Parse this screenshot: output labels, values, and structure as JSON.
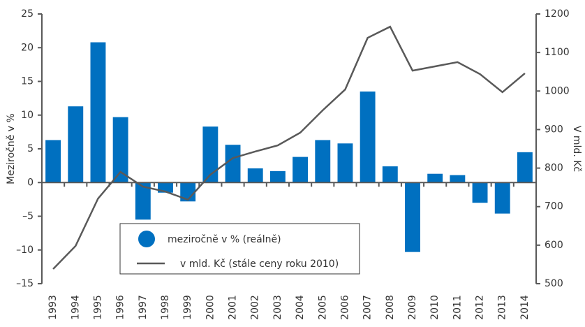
{
  "chart_data": {
    "type": "bar-line",
    "categories": [
      "1993",
      "1994",
      "1995",
      "1996",
      "1997",
      "1998",
      "1999",
      "2000",
      "2001",
      "2002",
      "2003",
      "2004",
      "2005",
      "2006",
      "2007",
      "2008",
      "2009",
      "2010",
      "2011",
      "2012",
      "2013",
      "2014"
    ],
    "series": [
      {
        "name": "meziročně v % (reálně)",
        "type": "bar",
        "color": "#0070c0",
        "axis": "y",
        "values": [
          6.3,
          11.3,
          20.8,
          9.7,
          -5.5,
          -1.5,
          -2.8,
          8.3,
          5.6,
          2.1,
          1.7,
          3.8,
          6.3,
          5.8,
          13.5,
          2.4,
          -10.3,
          1.3,
          1.1,
          -3.0,
          -4.6,
          4.5
        ]
      },
      {
        "name": "v mld. Kč (stále ceny roku 2010)",
        "type": "line",
        "color": "#595959",
        "axis": "y2",
        "values": [
          538,
          598,
          721,
          790,
          752,
          739,
          718,
          783,
          826,
          843,
          859,
          892,
          950,
          1004,
          1138,
          1167,
          1053,
          1064,
          1075,
          1044,
          997,
          1046
        ]
      }
    ],
    "ylabel": "Meziročně v %",
    "y2label": "V mld. Kč",
    "ylim": [
      -15,
      25
    ],
    "yticks": [
      {
        "value": -15,
        "label": "–15"
      },
      {
        "value": -10,
        "label": "–10"
      },
      {
        "value": -5,
        "label": "–5"
      },
      0,
      5,
      10,
      15,
      20,
      25
    ],
    "y2lim": [
      500,
      1200
    ],
    "y2ticks": [
      500,
      600,
      700,
      800,
      900,
      1000,
      1100,
      1200
    ],
    "grid": false
  }
}
